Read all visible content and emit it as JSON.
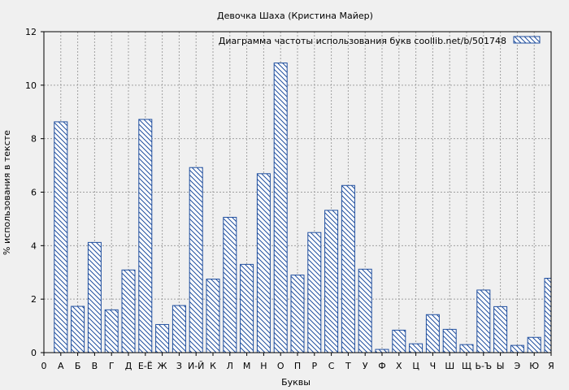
{
  "chart_data": {
    "type": "bar",
    "title": "Девочка Шаха (Кристина Майер)",
    "xlabel": "Буквы",
    "ylabel": "% использования в тексте",
    "legend": {
      "label": "Диаграмма частоты использования букв  coollib.net/b/501748",
      "placement": "top-right"
    },
    "ylim": [
      0,
      12
    ],
    "yticks": [
      0,
      2,
      4,
      6,
      8,
      10,
      12
    ],
    "xticks": [
      "0",
      "А",
      "Б",
      "В",
      "Г",
      "Д",
      "Е-Ё",
      "Ж",
      "З",
      "И-Й",
      "К",
      "Л",
      "М",
      "Н",
      "О",
      "П",
      "Р",
      "С",
      "Т",
      "У",
      "Ф",
      "Х",
      "Ц",
      "Ч",
      "Ш",
      "Щ",
      "Ь-Ъ",
      "Ы",
      "Э",
      "Ю",
      "Я"
    ],
    "categories": [
      "А",
      "Б",
      "В",
      "Г",
      "Д",
      "Е-Ё",
      "Ж",
      "З",
      "И-Й",
      "К",
      "Л",
      "М",
      "Н",
      "О",
      "П",
      "Р",
      "С",
      "Т",
      "У",
      "Ф",
      "Х",
      "Ц",
      "Ч",
      "Ш",
      "Щ",
      "Ь-Ъ",
      "Ы",
      "Э",
      "Ю",
      "Я"
    ],
    "values": [
      8.63,
      1.73,
      4.12,
      1.6,
      3.09,
      8.72,
      1.05,
      1.76,
      6.92,
      2.75,
      5.06,
      3.3,
      6.69,
      10.83,
      2.9,
      4.49,
      5.32,
      6.25,
      3.12,
      0.12,
      0.84,
      0.33,
      1.42,
      0.87,
      0.3,
      2.34,
      1.72,
      0.27,
      0.57,
      2.78
    ],
    "grid": true,
    "colors": {
      "bar_stroke": "#1f4e9e",
      "hatch": "#1f4e9e",
      "bar_fill": "#ffffff",
      "background": "#f0f0f0",
      "grid": "#a0a0a0"
    }
  }
}
